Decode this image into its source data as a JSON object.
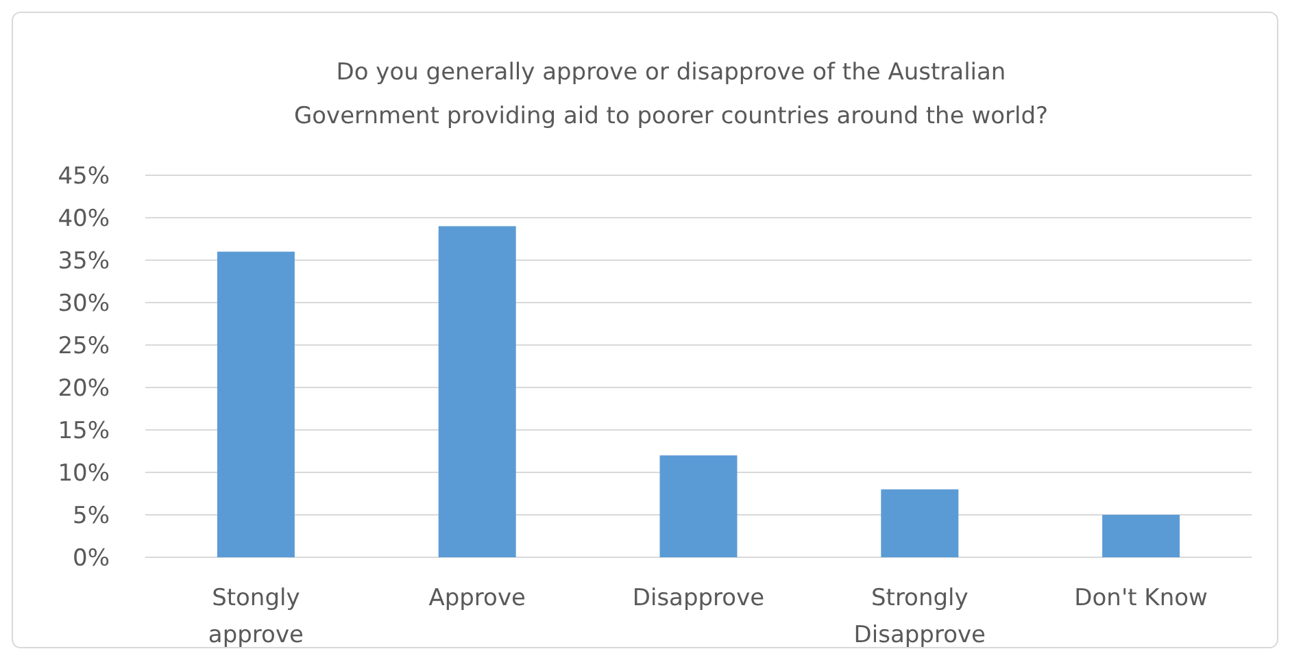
{
  "chart_data": {
    "type": "bar",
    "title": "Do you generally approve or disapprove of the Australian Government providing aid to poorer countries around the world?",
    "categories": [
      "Stongly approve",
      "Approve",
      "Disapprove",
      "Strongly Disapprove",
      "Don't Know"
    ],
    "values": [
      36,
      39,
      12,
      8,
      5
    ],
    "color": "#5b9bd5",
    "ylim": [
      0,
      45
    ],
    "yticks": [
      {
        "value": 0,
        "label": "0%"
      },
      {
        "value": 5,
        "label": "5%"
      },
      {
        "value": 10,
        "label": "10%"
      },
      {
        "value": 15,
        "label": "15%"
      },
      {
        "value": 20,
        "label": "20%"
      },
      {
        "value": 25,
        "label": "25%"
      },
      {
        "value": 30,
        "label": "30%"
      },
      {
        "value": 35,
        "label": "35%"
      },
      {
        "value": 40,
        "label": "40%"
      },
      {
        "value": 45,
        "label": "45%"
      }
    ],
    "grid": true
  }
}
